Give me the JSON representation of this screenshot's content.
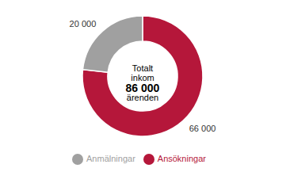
{
  "chart_data": {
    "type": "donut",
    "categories": [
      "Ansökningar",
      "Anmälningar"
    ],
    "values": [
      66000,
      20000
    ],
    "value_labels": [
      "66 000",
      "20 000"
    ],
    "colors": [
      "#b5173a",
      "#a0a0a0"
    ],
    "data_labels": true,
    "legend": "bottom",
    "annotations": [
      "Totalt",
      "inkom",
      "86 000",
      "ärenden"
    ]
  }
}
